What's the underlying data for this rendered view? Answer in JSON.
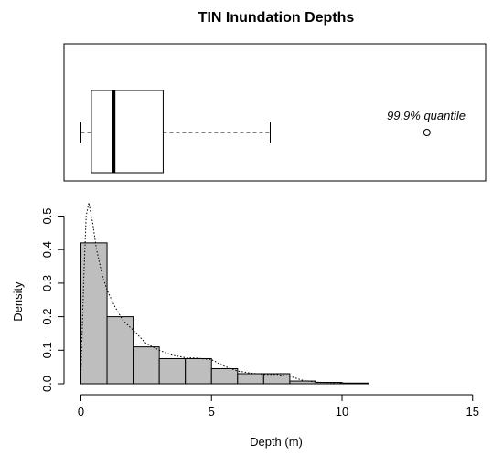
{
  "chart_data": {
    "type": "bar",
    "title": "TIN Inundation Depths",
    "xlabel": "Depth (m)",
    "ylabel": "Density",
    "xlim": [
      0,
      15
    ],
    "ylim": [
      0,
      0.55
    ],
    "x_ticks": [
      0,
      5,
      10,
      15
    ],
    "y_ticks": [
      0.0,
      0.1,
      0.2,
      0.3,
      0.4,
      0.5
    ],
    "x_tick_labels": [
      "0",
      "5",
      "10",
      "15"
    ],
    "y_tick_labels": [
      "0.0",
      "0.1",
      "0.2",
      "0.3",
      "0.4",
      "0.5"
    ],
    "histogram": {
      "bin_edges": [
        0,
        1,
        2,
        3,
        4,
        5,
        6,
        7,
        8,
        9,
        10,
        11
      ],
      "values": [
        0.42,
        0.2,
        0.11,
        0.075,
        0.075,
        0.045,
        0.03,
        0.03,
        0.008,
        0.004,
        0.002
      ],
      "fill": "#bebebe"
    },
    "density_curve": {
      "style": "dotted",
      "x": [
        0,
        0.1,
        0.2,
        0.3,
        0.45,
        0.6,
        0.8,
        1.0,
        1.3,
        1.6,
        2.0,
        2.5,
        3.0,
        3.5,
        4.0,
        4.5,
        5.0,
        5.5,
        6.0,
        6.5,
        7.0,
        7.5,
        8.0,
        8.5,
        9.0,
        10.0,
        11.0
      ],
      "y": [
        0.03,
        0.3,
        0.5,
        0.54,
        0.48,
        0.4,
        0.33,
        0.28,
        0.23,
        0.19,
        0.16,
        0.12,
        0.1,
        0.085,
        0.078,
        0.076,
        0.072,
        0.052,
        0.038,
        0.032,
        0.028,
        0.028,
        0.022,
        0.01,
        0.005,
        0.002,
        0.0
      ]
    },
    "boxplot": {
      "whisker_low": 0,
      "q1": 0.4,
      "median": 1.25,
      "q3": 3.15,
      "whisker_high": 7.25,
      "outlier": 13.25,
      "outlier_label": "99.9% quantile"
    },
    "grid": false,
    "legend": "none"
  }
}
